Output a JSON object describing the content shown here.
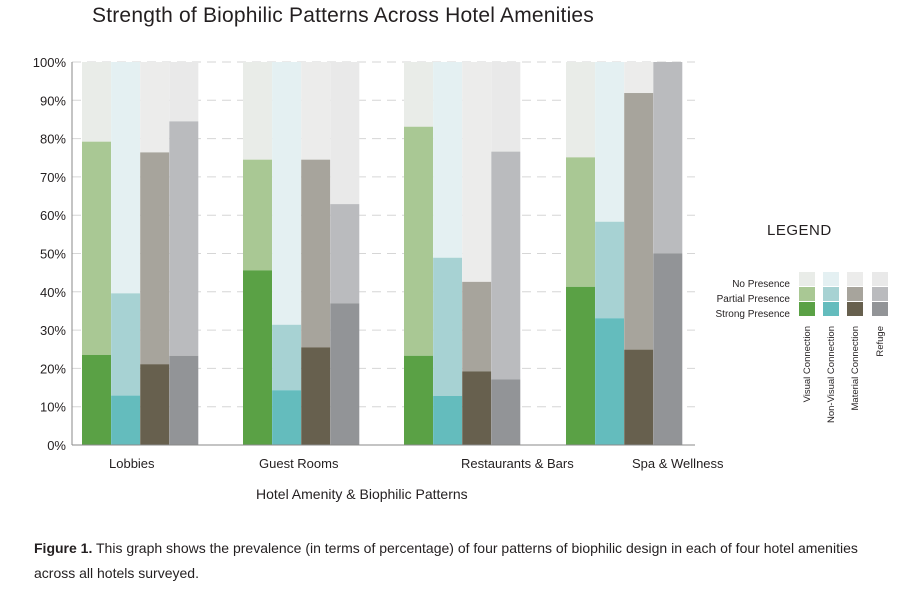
{
  "chart_data": {
    "type": "bar",
    "title": "Strength of Biophilic Patterns Across Hotel Amenities",
    "xlabel": "Hotel Amenity & Biophilic Patterns",
    "ylabel": "",
    "ylim": [
      0,
      100
    ],
    "yticks": [
      "0%",
      "10%",
      "20%",
      "30%",
      "40%",
      "50%",
      "60%",
      "70%",
      "80%",
      "90%",
      "100%"
    ],
    "grid": true,
    "legend_position": "right",
    "legend_title": "LEGEND",
    "levels": [
      "No Presence",
      "Partial Presence",
      "Strong Presence"
    ],
    "categories": [
      "Lobbies",
      "Guest Rooms",
      "Restaurants & Bars",
      "Spa & Wellness"
    ],
    "series": [
      {
        "name": "Visual Connection",
        "colors": [
          "#e9ece8",
          "#a9c894",
          "#5aa145"
        ],
        "strong": [
          23.5,
          45.6,
          23.3,
          41.3
        ],
        "total": [
          79.2,
          74.5,
          83.1,
          75.1
        ]
      },
      {
        "name": "Non-Visual Connection",
        "colors": [
          "#e4f0f2",
          "#a7d2d3",
          "#64bcbd"
        ],
        "strong": [
          12.9,
          14.3,
          12.8,
          33.1
        ],
        "total": [
          39.6,
          31.4,
          48.9,
          58.3
        ]
      },
      {
        "name": "Material Connection",
        "colors": [
          "#ececeb",
          "#a7a49c",
          "#67604e"
        ],
        "strong": [
          21.1,
          25.5,
          19.2,
          24.9
        ],
        "total": [
          76.4,
          74.5,
          42.6,
          91.9
        ]
      },
      {
        "name": "Refuge",
        "colors": [
          "#e9e9e9",
          "#babbbe",
          "#929497"
        ],
        "strong": [
          23.3,
          37.0,
          17.1,
          50.0
        ],
        "total": [
          84.5,
          62.9,
          76.6,
          100
        ]
      }
    ]
  },
  "caption": {
    "label": "Figure 1.",
    "text": " This graph shows the prevalence (in terms of percentage) of four patterns of biophilic design in each of four hotel amenities across all hotels surveyed."
  }
}
